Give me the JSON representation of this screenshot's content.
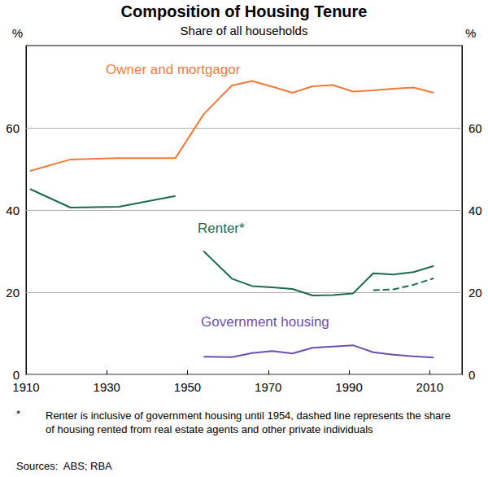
{
  "chart_data": {
    "type": "line",
    "title": "Composition of Housing Tenure",
    "subtitle": "Share of all households",
    "ylabel": "%",
    "footnote_marker": "*",
    "footnote": "Renter is inclusive of government housing until 1954, dashed line represents the share of housing rented from real estate agents and other private individuals",
    "source": "Sources:  ABS; RBA",
    "xlim": [
      1910,
      2018
    ],
    "xticks": [
      1910,
      1930,
      1950,
      1970,
      1990,
      2010
    ],
    "ylim": [
      0,
      80
    ],
    "yticks": [
      0,
      20,
      40,
      60
    ],
    "grid": true,
    "series": [
      {
        "name": "Owner and mortgagor",
        "color": "#f47a3a",
        "line_style": "solid",
        "x": [
          1911,
          1921,
          1933,
          1947,
          1954,
          1961,
          1966,
          1971,
          1976,
          1981,
          1986,
          1991,
          1996,
          2001,
          2006,
          2011
        ],
        "values": [
          49.5,
          52.3,
          52.6,
          52.6,
          63.3,
          70.3,
          71.4,
          70.0,
          68.5,
          70.1,
          70.4,
          68.8,
          69.1,
          69.5,
          69.8,
          68.5
        ]
      },
      {
        "color": "#1b6b4e",
        "line_style": "solid",
        "x": [
          1911,
          1921,
          1933,
          1947
        ],
        "values": [
          45.1,
          40.6,
          40.8,
          43.4
        ]
      },
      {
        "name": "Renter*",
        "color": "#1b6b4e",
        "line_style": "solid",
        "x": [
          1954,
          1961,
          1966,
          1971,
          1976,
          1981,
          1986,
          1991,
          1996,
          2001,
          2006,
          2011
        ],
        "values": [
          30.0,
          23.3,
          21.5,
          21.2,
          20.8,
          19.2,
          19.3,
          19.7,
          24.6,
          24.3,
          24.9,
          26.4
        ]
      },
      {
        "color": "#1b6b4e",
        "line_style": "dashed",
        "x": [
          1996,
          2001,
          2006,
          2011
        ],
        "values": [
          20.5,
          20.7,
          21.8,
          23.4
        ]
      },
      {
        "name": "Government housing",
        "color": "#6e4fb0",
        "line_style": "solid",
        "x": [
          1954,
          1961,
          1966,
          1971,
          1976,
          1981,
          1986,
          1991,
          1996,
          2001,
          2006,
          2011
        ],
        "values": [
          4.3,
          4.2,
          5.2,
          5.7,
          5.1,
          6.5,
          6.8,
          7.1,
          5.4,
          4.8,
          4.4,
          4.1
        ]
      }
    ]
  }
}
